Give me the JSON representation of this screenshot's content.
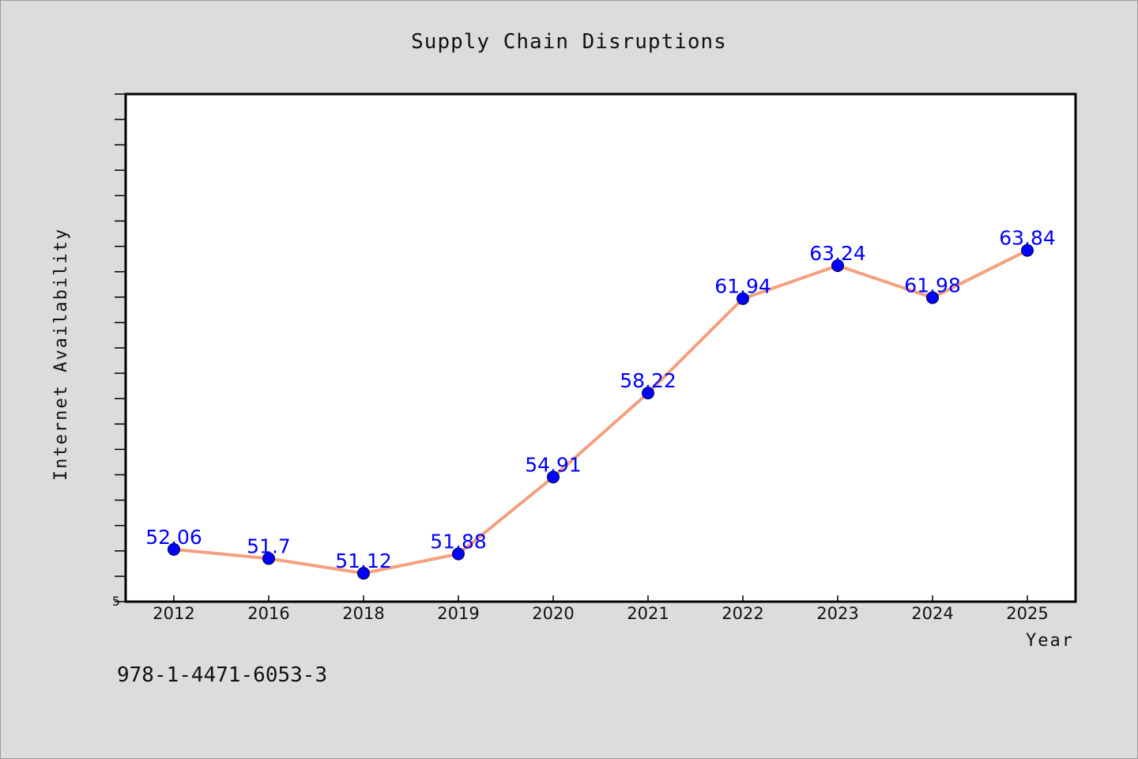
{
  "chart_data": {
    "type": "line",
    "title": "Supply Chain Disruptions",
    "xlabel": "Year",
    "ylabel": "Internet Availability",
    "categories": [
      "2012",
      "2016",
      "2018",
      "2019",
      "2020",
      "2021",
      "2022",
      "2023",
      "2024",
      "2025"
    ],
    "series": [
      {
        "values": [
          52.06,
          51.7,
          51.12,
          51.88,
          54.91,
          58.22,
          61.94,
          63.24,
          61.98,
          63.84
        ],
        "line_color": "#f4a07e",
        "marker_color": "#0000ff",
        "label_color": "#0000ff"
      }
    ],
    "data_labels": [
      "52.06",
      "51.7",
      "51.12",
      "51.88",
      "54.91",
      "58.22",
      "61.94",
      "63.24",
      "61.98",
      "63.84"
    ],
    "ytick_labels": [
      "5"
    ],
    "ylim": [
      50,
      70
    ],
    "grid": false,
    "legend": "none"
  },
  "footnote": "978-1-4471-6053-3"
}
